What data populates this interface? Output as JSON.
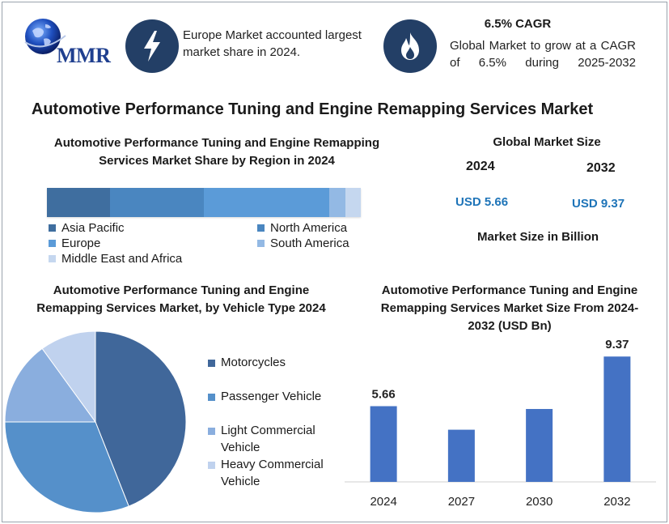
{
  "logo": {
    "text": "MMR"
  },
  "header": {
    "europe_text": "Europe Market accounted largest market share in 2024.",
    "cagr_title": "6.5% CAGR",
    "cagr_text": "Global Market to grow at a CAGR of 6.5% during 2025-2032"
  },
  "main_title": "Automotive Performance Tuning and Engine Remapping Services Market",
  "market_size": {
    "title": "Global Market Size",
    "year_start": "2024",
    "year_end": "2032",
    "value_start": "USD 5.66",
    "value_end": "USD 9.37",
    "unit": "Market Size in Billion"
  },
  "colors": {
    "asia_pacific": "#3f6e9f",
    "north_america": "#4a86c0",
    "europe": "#5b9bd8",
    "south_america": "#93b9e4",
    "mea": "#c5d7ef",
    "pie_motorcycles": "#40679a",
    "pie_passenger": "#5590ca",
    "pie_lcv": "#8aaede",
    "pie_hcv": "#c0d2ee",
    "bar": "#4472c4"
  },
  "chart_data": [
    {
      "type": "bar",
      "title": "Automotive Performance Tuning and Engine Remapping Services Market Share by Region in 2024",
      "stacked": true,
      "orientation": "horizontal",
      "categories": [
        "Asia Pacific",
        "North America",
        "Europe",
        "South America",
        "Middle East and Africa"
      ],
      "values": [
        20,
        30,
        40,
        5,
        5
      ],
      "legend": [
        {
          "label": "Asia Pacific",
          "color_key": "asia_pacific"
        },
        {
          "label": "North America",
          "color_key": "north_america"
        },
        {
          "label": "Europe",
          "color_key": "europe"
        },
        {
          "label": "South America",
          "color_key": "south_america"
        },
        {
          "label": "Middle East and Africa",
          "color_key": "mea"
        }
      ],
      "legend_position": "bottom"
    },
    {
      "type": "pie",
      "title": "Automotive Performance Tuning and Engine Remapping Services Market, by Vehicle Type 2024",
      "categories": [
        "Motorcycles",
        "Passenger Vehicle",
        "Light Commercial Vehicle",
        "Heavy Commercial Vehicle"
      ],
      "values": [
        44,
        31,
        15,
        10
      ],
      "legend": [
        {
          "label": "Motorcycles",
          "color_key": "pie_motorcycles"
        },
        {
          "label": "Passenger Vehicle",
          "color_key": "pie_passenger"
        },
        {
          "label": "Light Commercial Vehicle",
          "color_key": "pie_lcv"
        },
        {
          "label": "Heavy Commercial Vehicle",
          "color_key": "pie_hcv"
        }
      ],
      "legend_position": "right"
    },
    {
      "type": "bar",
      "title": "Automotive Performance Tuning and Engine Remapping Services  Market Size From 2024-2032 (USD Bn)",
      "categories": [
        "2024",
        "2027",
        "2030",
        "2032"
      ],
      "values": [
        5.66,
        3.9,
        5.45,
        9.37
      ],
      "data_labels": [
        "5.66",
        "",
        "",
        "9.37"
      ],
      "ylim": [
        0,
        11.2
      ],
      "grid": false
    }
  ]
}
